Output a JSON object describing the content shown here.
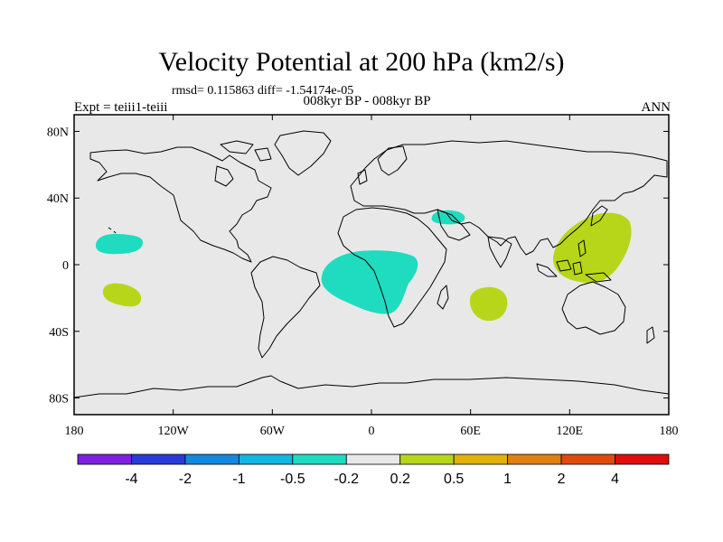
{
  "title": "Velocity Potential at 200 hPa (km2/s)",
  "stats": "rmsd= 0.115863 diff= -1.54174e-05",
  "experiment": "Expt = teiii1-teiii",
  "period": "008kyr BP - 008kyr BP",
  "season": "ANN",
  "map": {
    "projection": "cylindrical-equidistant",
    "lon_range": [
      -180,
      180
    ],
    "lat_range": [
      -90,
      90
    ],
    "x_ticks": [
      {
        "lon": -180,
        "label": "180"
      },
      {
        "lon": -120,
        "label": "120W"
      },
      {
        "lon": -60,
        "label": "60W"
      },
      {
        "lon": 0,
        "label": "0"
      },
      {
        "lon": 60,
        "label": "60E"
      },
      {
        "lon": 120,
        "label": "120E"
      },
      {
        "lon": 180,
        "label": "180"
      }
    ],
    "y_ticks": [
      {
        "lat": 80,
        "label": "80N"
      },
      {
        "lat": 40,
        "label": "40N"
      },
      {
        "lat": 0,
        "label": "0"
      },
      {
        "lat": -40,
        "label": "40S"
      },
      {
        "lat": -80,
        "label": "80S"
      }
    ],
    "background_color": "#e8e8e8"
  },
  "colorbar": {
    "colors": [
      "#7f1fe0",
      "#2a3ad9",
      "#1487df",
      "#12b6e2",
      "#1fdcc0",
      "#e8e8e8",
      "#b7d61a",
      "#e0b20a",
      "#e07f12",
      "#e04a0c",
      "#e00d0d"
    ],
    "labels": [
      "-4",
      "-2",
      "-1",
      "-0.5",
      "-0.2",
      "0.2",
      "0.5",
      "1",
      "2",
      "4"
    ]
  },
  "anomalies": [
    {
      "name": "central-pacific-north",
      "value_range": "-0.5 to -0.2",
      "color": "#1fdcc0",
      "lon": -155,
      "lat": 7
    },
    {
      "name": "central-pacific-south",
      "value_range": "0.2 to 0.5",
      "color": "#b7d61a",
      "lon": -155,
      "lat": -20
    },
    {
      "name": "equatorial-africa-atlantic",
      "value_range": "-0.5 to -0.2",
      "color": "#1fdcc0",
      "lon": 0,
      "lat": -10
    },
    {
      "name": "arabia",
      "value_range": "-0.5 to -0.2",
      "color": "#1fdcc0",
      "lon": 47,
      "lat": 32
    },
    {
      "name": "south-indian-ocean",
      "value_range": "0.2 to 0.5",
      "color": "#b7d61a",
      "lon": 68,
      "lat": -24
    },
    {
      "name": "maritime-continent",
      "value_range": "0.2 to 0.5",
      "color": "#b7d61a",
      "lon": 133,
      "lat": 6
    }
  ]
}
